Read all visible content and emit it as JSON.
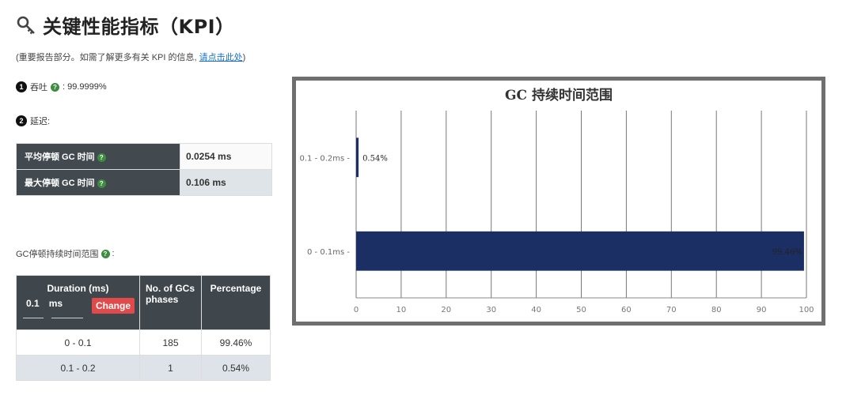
{
  "header": {
    "title": "关键性能指标（KPI）",
    "key_icon": "key-icon",
    "subtitle_prefix": "(重要报告部分。如需了解更多有关 KPI 的信息, ",
    "subtitle_link": "请点击此处",
    "subtitle_suffix": ")"
  },
  "throughput": {
    "badge": "1",
    "label": "吞吐",
    "help_icon": "question-icon",
    "value": " : 99.9999%"
  },
  "latency": {
    "badge": "2",
    "label": "延迟:"
  },
  "pause_table": {
    "rows": [
      {
        "label": "平均停顿 GC 时间",
        "value": "0.0254 ms"
      },
      {
        "label": "最大停顿 GC 时间",
        "value": "0.106 ms"
      }
    ]
  },
  "range_label": "GC停顿持续时间范围",
  "range_colon": ":",
  "duration_table": {
    "col_duration": "Duration (ms)",
    "interval_value": "0.1",
    "interval_unit": "ms",
    "change_button": "Change",
    "col_gcs": "No. of GCs phases",
    "col_pct": "Percentage",
    "rows": [
      {
        "range": "0 - 0.1",
        "count": "185",
        "pct": "99.46%"
      },
      {
        "range": "0.1 - 0.2",
        "count": "1",
        "pct": "0.54%"
      }
    ]
  },
  "colors": {
    "bar": "#1c2f64",
    "header_bg": "#424a50",
    "frame": "#6f6f6f",
    "change": "#e04a4a",
    "link": "#1a73c9"
  },
  "chart_data": {
    "type": "bar",
    "orientation": "horizontal",
    "title": "GC 持续时间范围",
    "categories": [
      "0.1 - 0.2ms",
      "0 - 0.1ms"
    ],
    "values": [
      0.54,
      99.46
    ],
    "value_labels": [
      "0.54%",
      "99.46%"
    ],
    "xlim": [
      0,
      100
    ],
    "xticks": [
      "0",
      "10",
      "20",
      "30",
      "40",
      "50",
      "60",
      "70",
      "80",
      "90",
      "100"
    ],
    "grid": true
  }
}
